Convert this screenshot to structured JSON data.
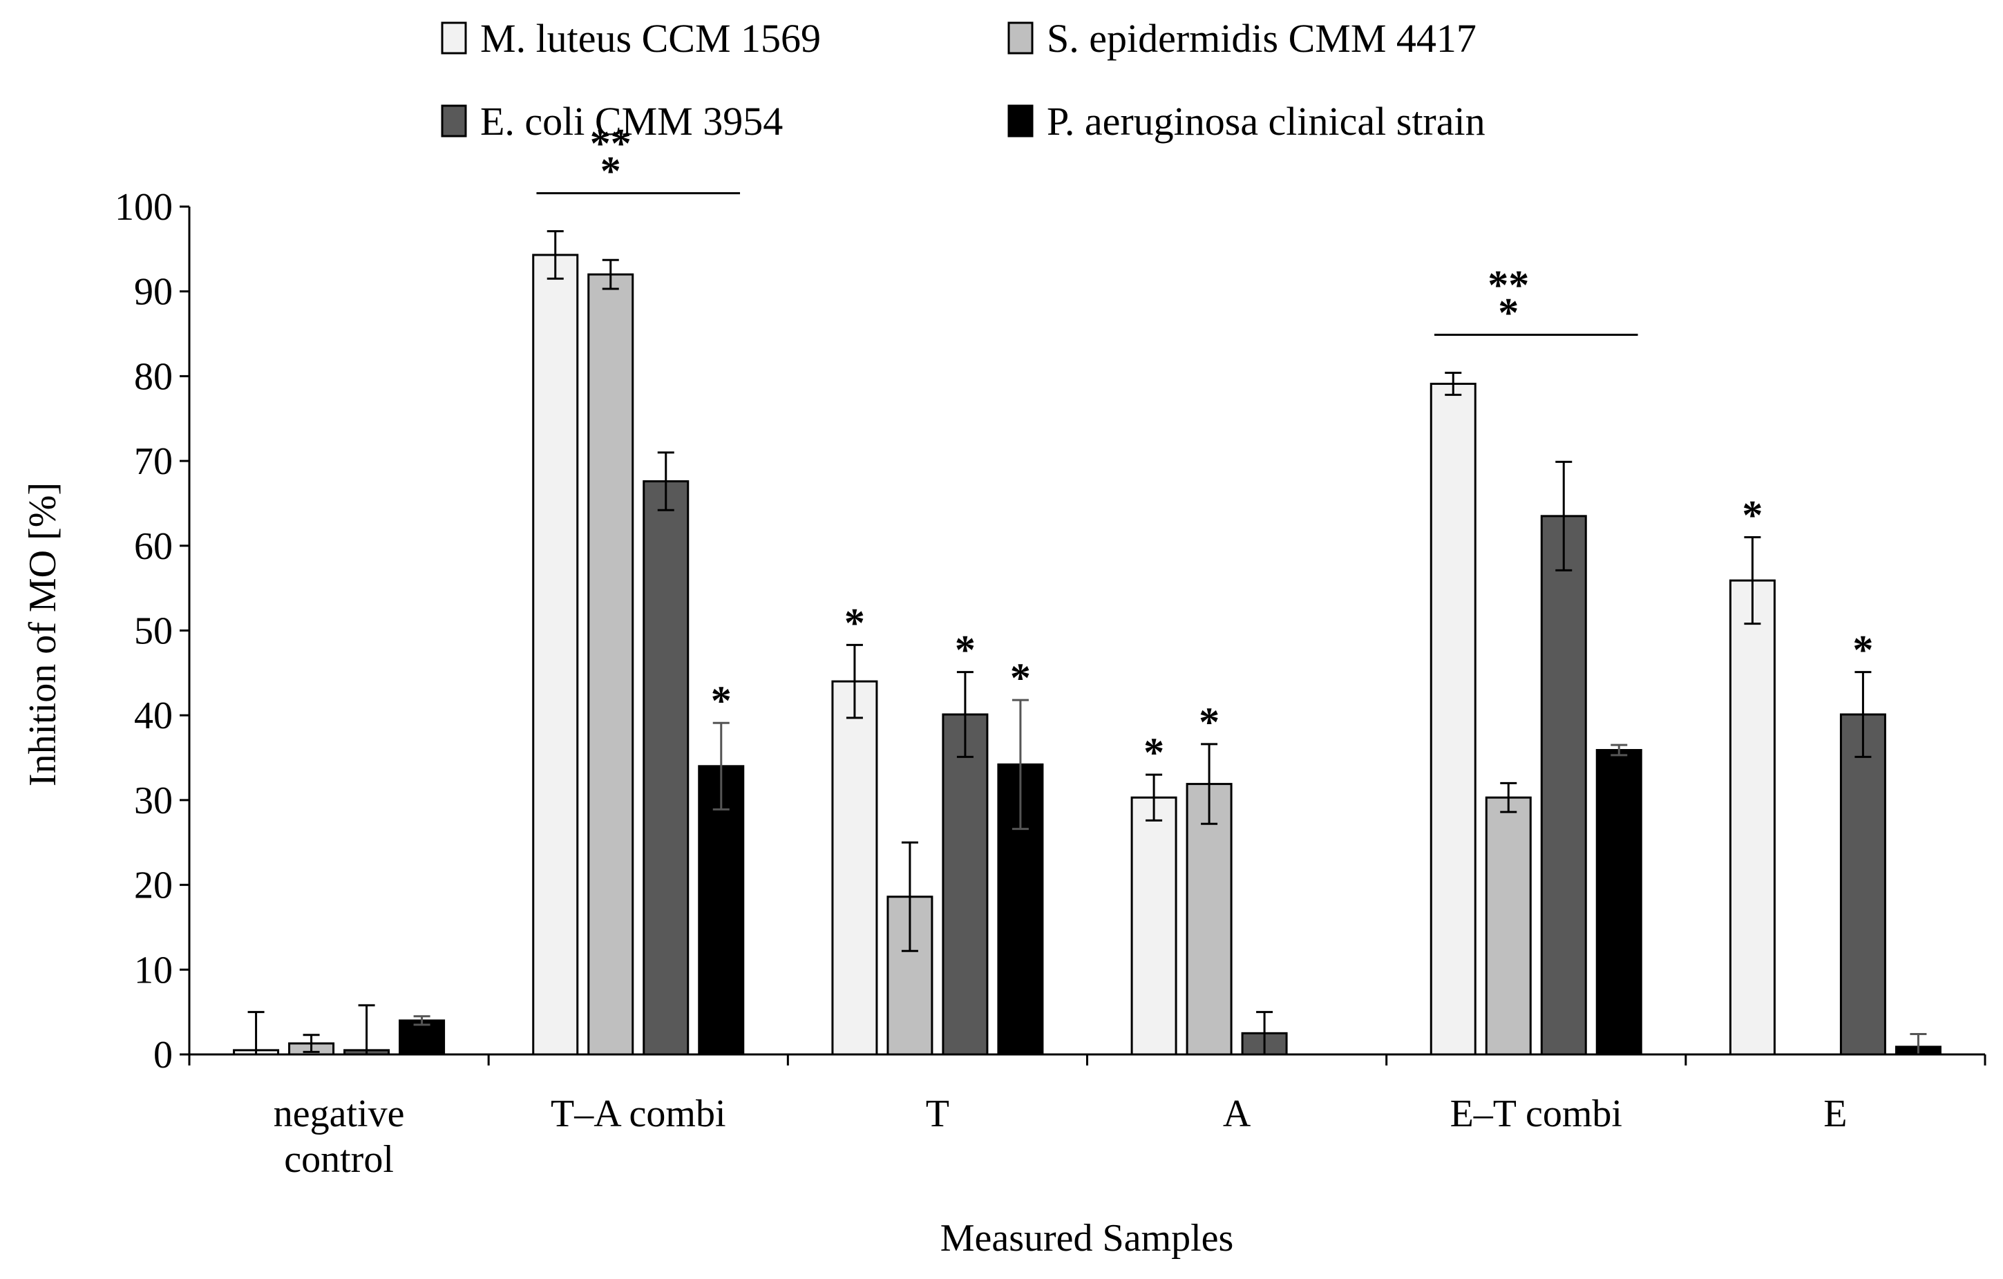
{
  "chart_data": {
    "type": "bar",
    "title": "",
    "xlabel": "Measured Samples",
    "ylabel": "Inhition of MO [%]",
    "ylim": [
      0,
      100
    ],
    "yticks": [
      0,
      10,
      20,
      30,
      40,
      50,
      60,
      70,
      80,
      90,
      100
    ],
    "categories": [
      "negative control",
      "T–A combi",
      "T",
      "A",
      "E–T combi",
      "E"
    ],
    "category_lines": [
      [
        "negative",
        "control"
      ],
      [
        "T–A combi"
      ],
      [
        "T"
      ],
      [
        "A"
      ],
      [
        "E–T combi"
      ],
      [
        "E"
      ]
    ],
    "legend_position": "top",
    "series": [
      {
        "name": "M. luteus CCM 1569",
        "color": "#f2f2f2",
        "values": [
          0.5,
          94.3,
          44.0,
          30.3,
          79.1,
          55.9
        ],
        "errors": [
          4.5,
          2.8,
          4.3,
          2.7,
          1.3,
          5.1
        ],
        "significance": [
          "",
          "",
          "*",
          "*",
          "",
          "*"
        ]
      },
      {
        "name": "S. epidermidis CMM 4417",
        "color": "#bfbfbf",
        "values": [
          1.3,
          92.0,
          18.6,
          31.9,
          30.3,
          0
        ],
        "errors": [
          1.0,
          1.7,
          6.4,
          4.7,
          1.7,
          0
        ],
        "significance": [
          "",
          "",
          "",
          "*",
          "",
          ""
        ]
      },
      {
        "name": "E. coli CMM 3954",
        "color": "#595959",
        "values": [
          0.5,
          67.6,
          40.1,
          2.5,
          63.5,
          40.1
        ],
        "errors": [
          5.3,
          3.4,
          5.0,
          2.5,
          6.4,
          5.0
        ],
        "significance": [
          "",
          "",
          "*",
          "",
          "",
          "*"
        ]
      },
      {
        "name": "P. aeruginosa clinical strain",
        "color": "#000000",
        "values": [
          4.0,
          34.0,
          34.2,
          0,
          35.9,
          0.9
        ],
        "errors": [
          0.5,
          5.1,
          7.6,
          0,
          0.6,
          1.5
        ],
        "significance": [
          "",
          "*",
          "*",
          "",
          "",
          ""
        ]
      }
    ],
    "group_annotations": [
      {
        "category": "T–A combi",
        "lines": [
          "**",
          "*"
        ]
      },
      {
        "category": "E–T combi",
        "lines": [
          "**",
          "*"
        ]
      }
    ]
  }
}
